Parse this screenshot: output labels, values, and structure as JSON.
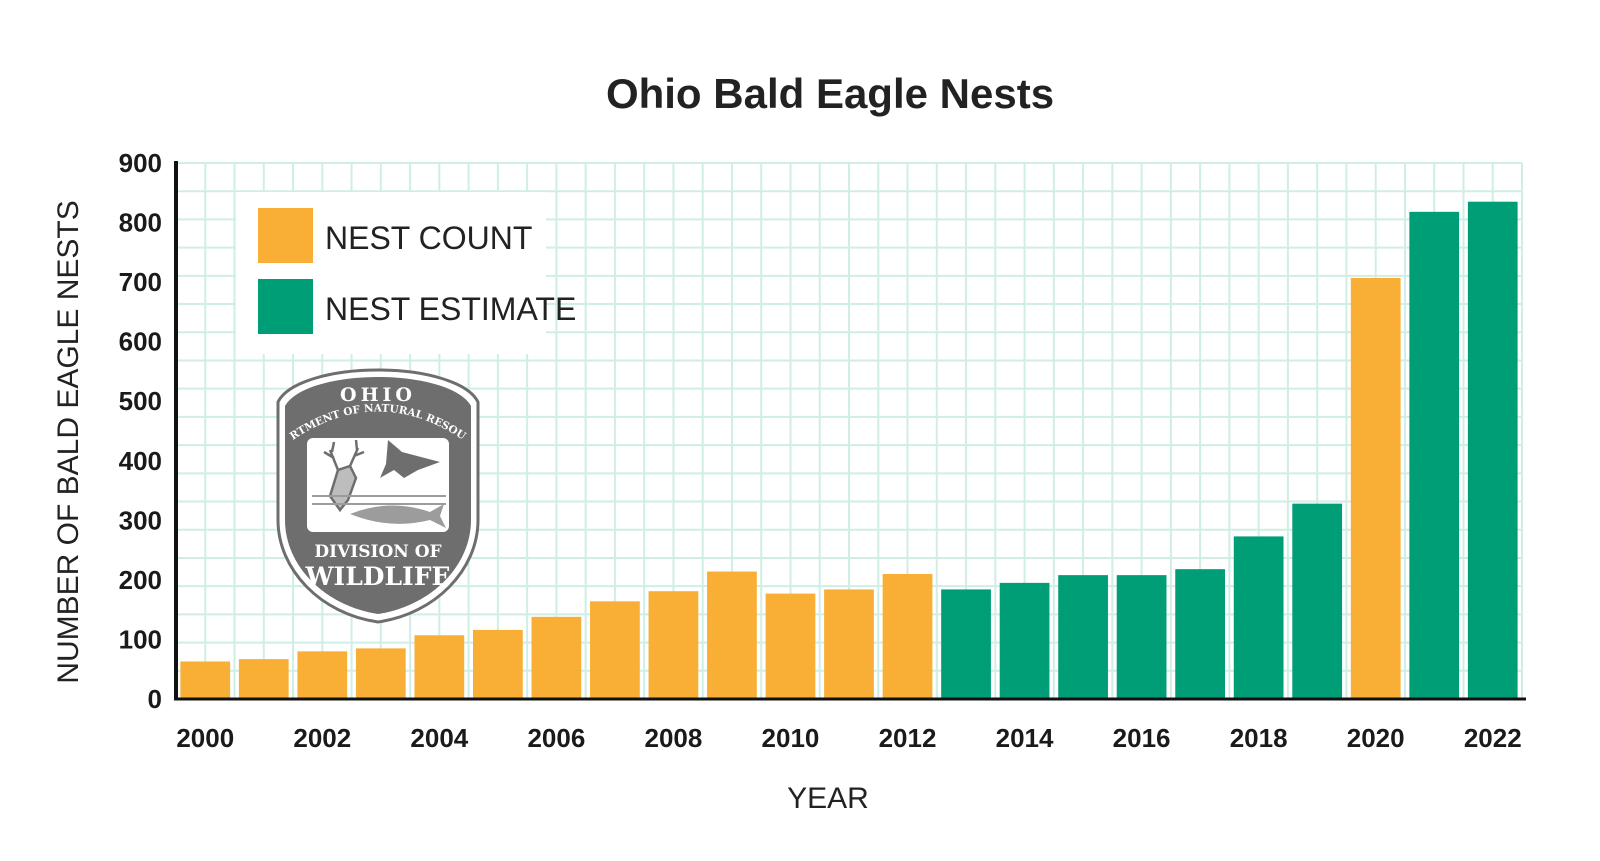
{
  "chart_data": {
    "type": "bar",
    "title": "Ohio Bald Eagle Nests",
    "xlabel": "YEAR",
    "ylabel": "NUMBER OF BALD EAGLE NESTS",
    "ylim": [
      0,
      900
    ],
    "yticks": [
      0,
      100,
      200,
      300,
      400,
      500,
      600,
      700,
      800,
      900
    ],
    "x_tick_labels": [
      "2000",
      "2002",
      "2004",
      "2006",
      "2008",
      "2010",
      "2012",
      "2014",
      "2016",
      "2018",
      "2020",
      "2022"
    ],
    "grid": true,
    "legend_position": "top-left",
    "categories": [
      "2000",
      "2001",
      "2002",
      "2003",
      "2004",
      "2005",
      "2006",
      "2007",
      "2008",
      "2009",
      "2010",
      "2011",
      "2012",
      "2013",
      "2014",
      "2015",
      "2016",
      "2017",
      "2018",
      "2019",
      "2020",
      "2021",
      "2022"
    ],
    "series": [
      {
        "name": "NEST COUNT",
        "color": "#F9AE35",
        "values": [
          63,
          67,
          80,
          85,
          107,
          116,
          138,
          164,
          181,
          214,
          177,
          184,
          210,
          null,
          null,
          null,
          null,
          null,
          null,
          null,
          707,
          null,
          null
        ]
      },
      {
        "name": "NEST ESTIMATE",
        "color": "#009E76",
        "values": [
          null,
          null,
          null,
          null,
          null,
          null,
          null,
          null,
          null,
          null,
          null,
          null,
          null,
          184,
          195,
          208,
          208,
          218,
          273,
          328,
          null,
          818,
          835
        ]
      }
    ]
  },
  "logo": {
    "top_text": "OHIO",
    "arc_text": "DEPARTMENT OF NATURAL RESOURCES",
    "line1": "DIVISION OF",
    "line2": "WILDLIFE",
    "color": "#6e6e6e"
  },
  "colors": {
    "grid": "#cfeee5",
    "axis": "#111111"
  }
}
